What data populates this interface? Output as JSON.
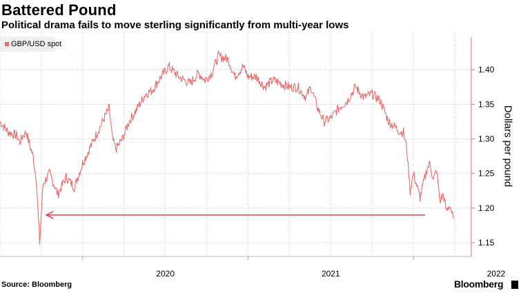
{
  "title": "Battered Pound",
  "subtitle": "Political drama fails to move sterling significantly from multi-year lows",
  "source": "Source: Bloomberg",
  "brand": "Bloomberg",
  "colors": {
    "series": "#e86a6a",
    "annotation": "#e8384a",
    "grid": "#d4d4d4",
    "axis": "#e86a6a"
  },
  "chart_data": {
    "type": "line",
    "title": "Battered Pound",
    "subtitle": "Political drama fails to move sterling significantly from multi-year lows",
    "xlabel": "",
    "ylabel": "Dollars per pound",
    "legend": "GBP/USD spot",
    "legend_position": "top-left",
    "ylim": [
      1.13,
      1.455
    ],
    "xlim": [
      2019.5,
      2022.35
    ],
    "yticks": [
      1.15,
      1.2,
      1.25,
      1.3,
      1.35,
      1.4
    ],
    "ytick_labels": [
      "1.15",
      "1.20",
      "1.25",
      "1.30",
      "1.35",
      "1.40"
    ],
    "xticks": [
      2020,
      2021,
      2022
    ],
    "xtick_labels": [
      "2020",
      "2021",
      "2022"
    ],
    "grid": true,
    "series": [
      {
        "name": "GBP/USD spot",
        "x": [
          2019.5,
          2019.55,
          2019.6,
          2019.62,
          2019.64,
          2019.66,
          2019.68,
          2019.7,
          2019.72,
          2019.74,
          2019.76,
          2019.8,
          2019.85,
          2019.9,
          2019.95,
          2020.0,
          2020.03,
          2020.08,
          2020.13,
          2020.16,
          2020.18,
          2020.2,
          2020.24,
          2020.28,
          2020.32,
          2020.38,
          2020.42,
          2020.46,
          2020.52,
          2020.58,
          2020.65,
          2020.7,
          2020.74,
          2020.78,
          2020.82,
          2020.88,
          2020.92,
          2020.97,
          2021.0,
          2021.05,
          2021.1,
          2021.15,
          2021.2,
          2021.25,
          2021.3,
          2021.35,
          2021.38,
          2021.42,
          2021.46,
          2021.5,
          2021.55,
          2021.6,
          2021.65,
          2021.7,
          2021.75,
          2021.8,
          2021.85,
          2021.9,
          2021.92,
          2021.94,
          2021.96,
          2021.98,
          2022.0,
          2022.04,
          2022.08,
          2022.1,
          2022.12,
          2022.14,
          2022.16,
          2022.18,
          2022.2,
          2022.22,
          2022.24
        ],
        "values": [
          1.325,
          1.31,
          1.305,
          1.295,
          1.305,
          1.31,
          1.29,
          1.275,
          1.24,
          1.15,
          1.235,
          1.25,
          1.22,
          1.245,
          1.23,
          1.265,
          1.28,
          1.305,
          1.33,
          1.345,
          1.3,
          1.285,
          1.3,
          1.325,
          1.34,
          1.365,
          1.37,
          1.385,
          1.405,
          1.39,
          1.38,
          1.395,
          1.385,
          1.395,
          1.42,
          1.415,
          1.39,
          1.405,
          1.39,
          1.39,
          1.375,
          1.385,
          1.38,
          1.375,
          1.375,
          1.36,
          1.375,
          1.345,
          1.325,
          1.33,
          1.345,
          1.355,
          1.375,
          1.36,
          1.365,
          1.355,
          1.325,
          1.315,
          1.31,
          1.31,
          1.285,
          1.225,
          1.25,
          1.215,
          1.255,
          1.265,
          1.24,
          1.255,
          1.21,
          1.22,
          1.195,
          1.205,
          1.185
        ]
      }
    ],
    "annotations": [
      {
        "type": "arrow",
        "y": 1.19,
        "x_from": 2022.07,
        "x_to": 2019.78
      }
    ]
  }
}
